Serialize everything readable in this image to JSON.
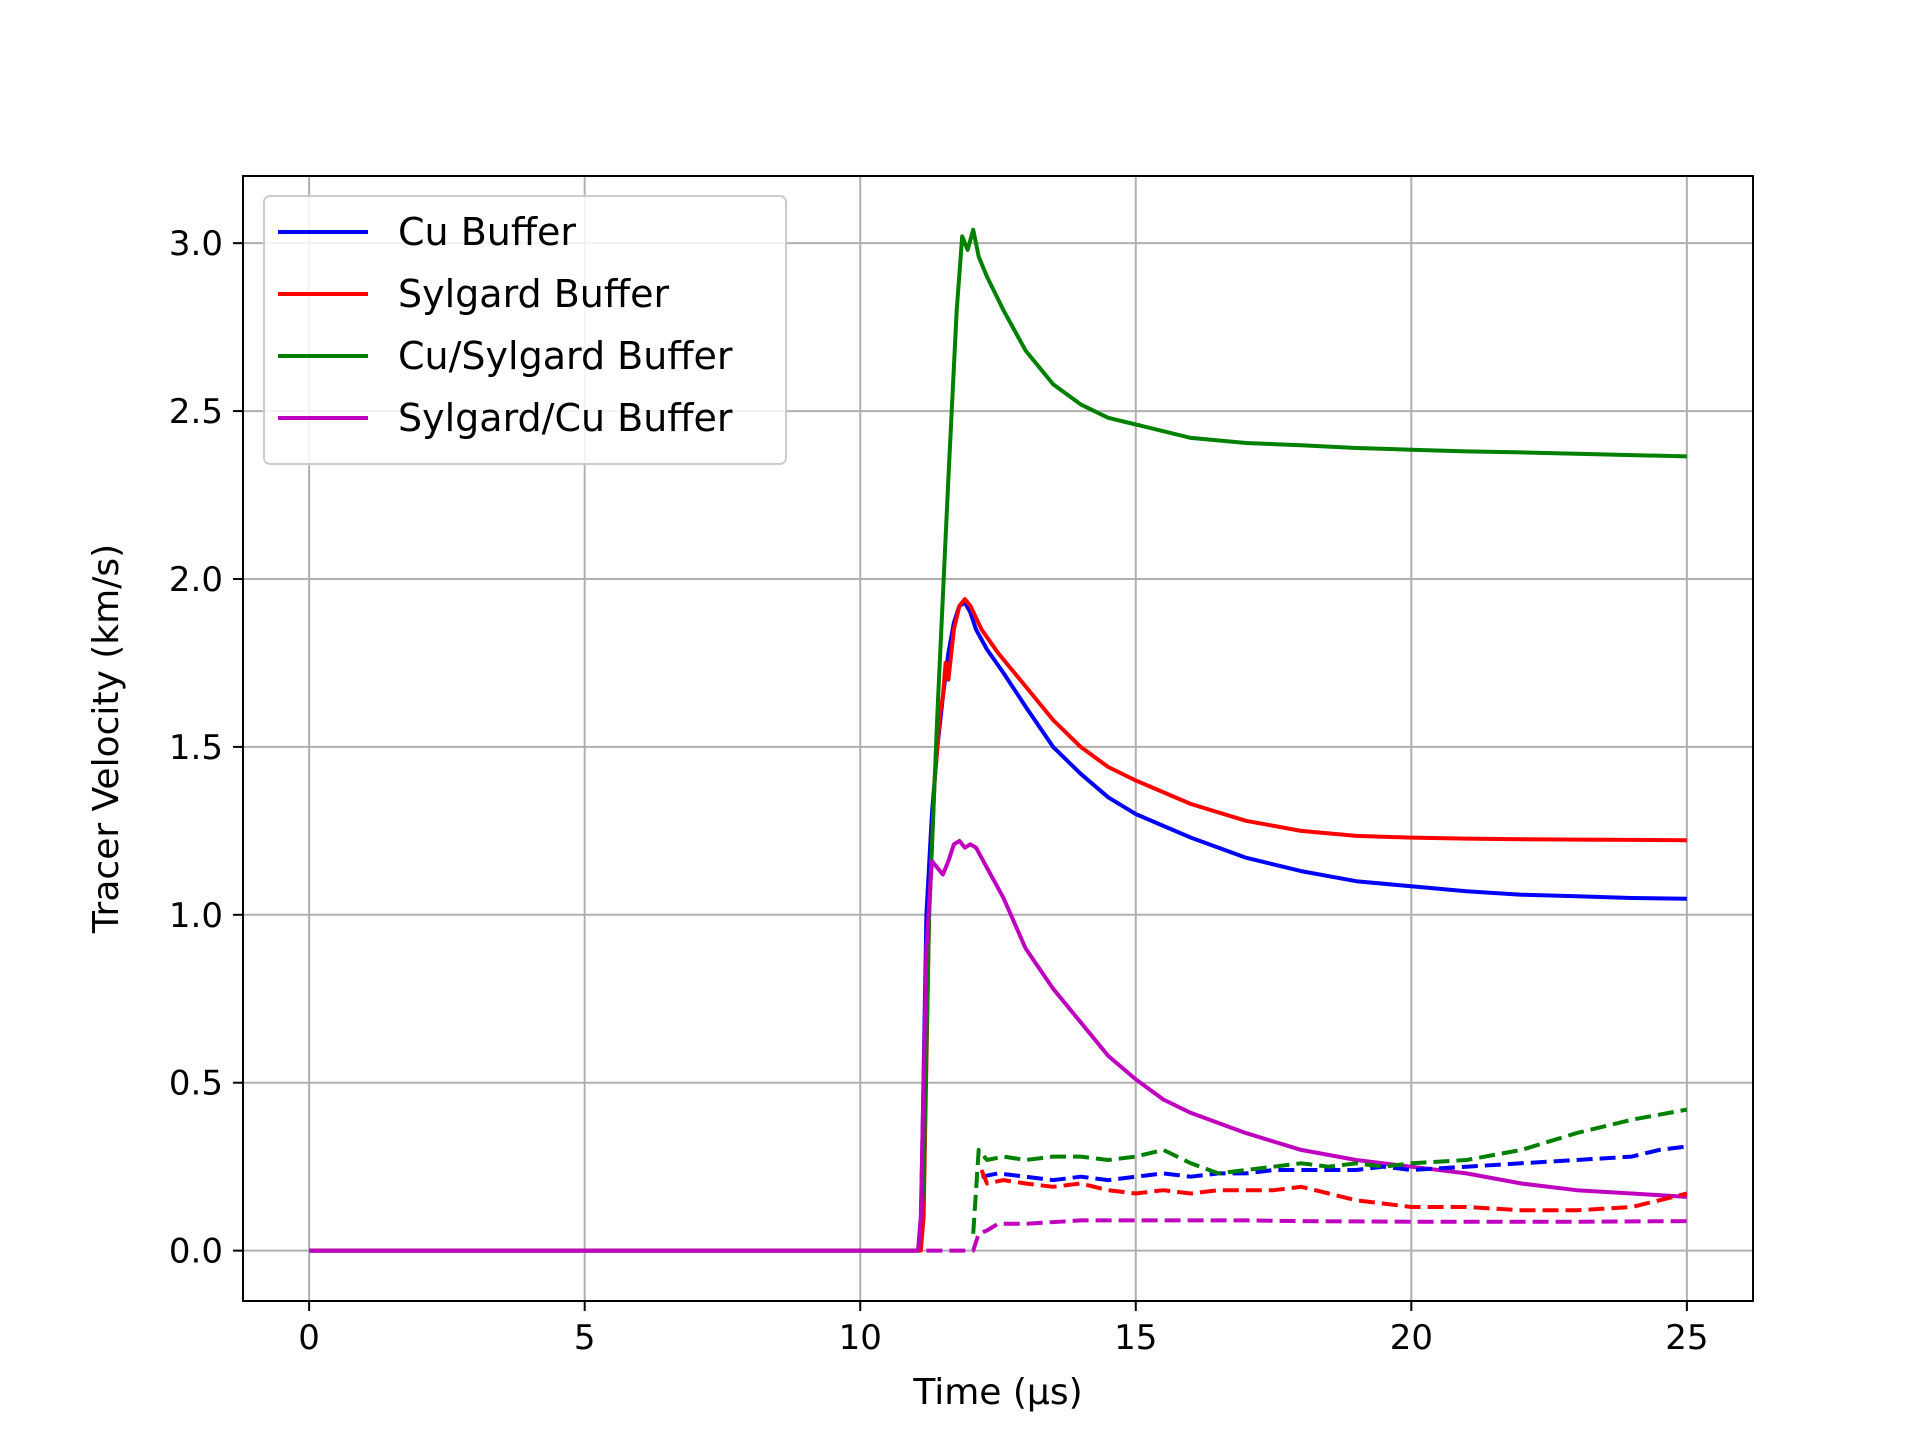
{
  "chart_data": {
    "type": "line",
    "xlabel": "Time (μs)",
    "ylabel": "Tracer Velocity (km/s)",
    "xlim": [
      -1.2,
      26.2
    ],
    "ylim": [
      -0.15,
      3.2
    ],
    "xticks": [
      0,
      5,
      10,
      15,
      20,
      25
    ],
    "xtick_labels": [
      "0",
      "5",
      "10",
      "15",
      "20",
      "25"
    ],
    "yticks": [
      0.0,
      0.5,
      1.0,
      1.5,
      2.0,
      2.5,
      3.0
    ],
    "ytick_labels": [
      "0.0",
      "0.5",
      "1.0",
      "1.5",
      "2.0",
      "2.5",
      "3.0"
    ],
    "grid": true,
    "legend_position": "upper-left",
    "series": [
      {
        "name": "Cu Buffer",
        "color": "#0000ff",
        "style": "solid",
        "points": [
          [
            0,
            0
          ],
          [
            11.05,
            0
          ],
          [
            11.1,
            0.05
          ],
          [
            11.2,
            1.0
          ],
          [
            11.3,
            1.3
          ],
          [
            11.4,
            1.5
          ],
          [
            11.5,
            1.65
          ],
          [
            11.6,
            1.78
          ],
          [
            11.7,
            1.87
          ],
          [
            11.8,
            1.92
          ],
          [
            11.9,
            1.93
          ],
          [
            12.0,
            1.9
          ],
          [
            12.1,
            1.85
          ],
          [
            12.3,
            1.79
          ],
          [
            12.6,
            1.72
          ],
          [
            13.0,
            1.62
          ],
          [
            13.5,
            1.5
          ],
          [
            14.0,
            1.42
          ],
          [
            14.5,
            1.35
          ],
          [
            15.0,
            1.3
          ],
          [
            16.0,
            1.23
          ],
          [
            17.0,
            1.17
          ],
          [
            18.0,
            1.13
          ],
          [
            19.0,
            1.1
          ],
          [
            20.0,
            1.085
          ],
          [
            21.0,
            1.07
          ],
          [
            22.0,
            1.06
          ],
          [
            23.0,
            1.055
          ],
          [
            24.0,
            1.05
          ],
          [
            25.0,
            1.048
          ]
        ]
      },
      {
        "name": "Sylgard Buffer",
        "color": "#ff0000",
        "style": "solid",
        "points": [
          [
            0,
            0
          ],
          [
            11.1,
            0
          ],
          [
            11.15,
            0.1
          ],
          [
            11.25,
            1.0
          ],
          [
            11.35,
            1.4
          ],
          [
            11.45,
            1.6
          ],
          [
            11.5,
            1.65
          ],
          [
            11.55,
            1.75
          ],
          [
            11.6,
            1.7
          ],
          [
            11.7,
            1.85
          ],
          [
            11.8,
            1.92
          ],
          [
            11.9,
            1.94
          ],
          [
            12.0,
            1.92
          ],
          [
            12.2,
            1.85
          ],
          [
            12.5,
            1.78
          ],
          [
            13.0,
            1.68
          ],
          [
            13.5,
            1.58
          ],
          [
            14.0,
            1.5
          ],
          [
            14.5,
            1.44
          ],
          [
            15.0,
            1.4
          ],
          [
            16.0,
            1.33
          ],
          [
            17.0,
            1.28
          ],
          [
            18.0,
            1.25
          ],
          [
            19.0,
            1.235
          ],
          [
            20.0,
            1.23
          ],
          [
            21.0,
            1.227
          ],
          [
            22.0,
            1.225
          ],
          [
            23.0,
            1.224
          ],
          [
            24.0,
            1.223
          ],
          [
            25.0,
            1.222
          ]
        ]
      },
      {
        "name": "Cu/Sylgard Buffer",
        "color": "#008000",
        "style": "solid",
        "points": [
          [
            0,
            0
          ],
          [
            11.05,
            0
          ],
          [
            11.15,
            0.2
          ],
          [
            11.25,
            1.0
          ],
          [
            11.4,
            1.6
          ],
          [
            11.6,
            2.3
          ],
          [
            11.75,
            2.8
          ],
          [
            11.85,
            3.02
          ],
          [
            11.95,
            2.98
          ],
          [
            12.05,
            3.04
          ],
          [
            12.15,
            2.96
          ],
          [
            12.3,
            2.9
          ],
          [
            12.6,
            2.8
          ],
          [
            13.0,
            2.68
          ],
          [
            13.5,
            2.58
          ],
          [
            14.0,
            2.52
          ],
          [
            14.5,
            2.48
          ],
          [
            15.0,
            2.46
          ],
          [
            16.0,
            2.42
          ],
          [
            17.0,
            2.405
          ],
          [
            18.0,
            2.398
          ],
          [
            19.0,
            2.39
          ],
          [
            20.0,
            2.385
          ],
          [
            21.0,
            2.38
          ],
          [
            22.0,
            2.377
          ],
          [
            23.0,
            2.373
          ],
          [
            24.0,
            2.369
          ],
          [
            25.0,
            2.365
          ]
        ]
      },
      {
        "name": "Sylgard/Cu Buffer",
        "color": "#bf00bf",
        "style": "solid",
        "points": [
          [
            0,
            0
          ],
          [
            11.05,
            0
          ],
          [
            11.1,
            0.1
          ],
          [
            11.2,
            0.9
          ],
          [
            11.3,
            1.16
          ],
          [
            11.4,
            1.14
          ],
          [
            11.5,
            1.12
          ],
          [
            11.6,
            1.16
          ],
          [
            11.7,
            1.21
          ],
          [
            11.8,
            1.22
          ],
          [
            11.9,
            1.2
          ],
          [
            12.0,
            1.21
          ],
          [
            12.1,
            1.2
          ],
          [
            12.3,
            1.14
          ],
          [
            12.6,
            1.05
          ],
          [
            13.0,
            0.9
          ],
          [
            13.5,
            0.78
          ],
          [
            14.0,
            0.68
          ],
          [
            14.5,
            0.58
          ],
          [
            15.0,
            0.51
          ],
          [
            15.5,
            0.45
          ],
          [
            16.0,
            0.41
          ],
          [
            17.0,
            0.35
          ],
          [
            18.0,
            0.3
          ],
          [
            19.0,
            0.27
          ],
          [
            20.0,
            0.25
          ],
          [
            21.0,
            0.23
          ],
          [
            22.0,
            0.2
          ],
          [
            23.0,
            0.18
          ],
          [
            24.0,
            0.17
          ],
          [
            25.0,
            0.16
          ]
        ]
      },
      {
        "name": "",
        "color": "#0000ff",
        "style": "dashed",
        "points": [
          [
            12.2,
            0.22
          ],
          [
            12.5,
            0.23
          ],
          [
            13.0,
            0.22
          ],
          [
            13.5,
            0.21
          ],
          [
            14.0,
            0.22
          ],
          [
            14.5,
            0.21
          ],
          [
            15.0,
            0.22
          ],
          [
            15.5,
            0.23
          ],
          [
            16.0,
            0.22
          ],
          [
            16.5,
            0.23
          ],
          [
            17.0,
            0.23
          ],
          [
            17.5,
            0.24
          ],
          [
            18.0,
            0.24
          ],
          [
            18.5,
            0.24
          ],
          [
            19.0,
            0.24
          ],
          [
            19.5,
            0.25
          ],
          [
            20.0,
            0.24
          ],
          [
            21.0,
            0.25
          ],
          [
            22.0,
            0.26
          ],
          [
            23.0,
            0.27
          ],
          [
            24.0,
            0.28
          ],
          [
            24.5,
            0.3
          ],
          [
            25.0,
            0.31
          ]
        ]
      },
      {
        "name": "",
        "color": "#ff0000",
        "style": "dashed",
        "points": [
          [
            12.2,
            0.24
          ],
          [
            12.3,
            0.2
          ],
          [
            12.6,
            0.21
          ],
          [
            13.0,
            0.2
          ],
          [
            13.5,
            0.19
          ],
          [
            14.0,
            0.2
          ],
          [
            14.5,
            0.18
          ],
          [
            15.0,
            0.17
          ],
          [
            15.5,
            0.18
          ],
          [
            16.0,
            0.17
          ],
          [
            16.5,
            0.18
          ],
          [
            17.0,
            0.18
          ],
          [
            17.5,
            0.18
          ],
          [
            18.0,
            0.19
          ],
          [
            18.5,
            0.17
          ],
          [
            19.0,
            0.15
          ],
          [
            19.5,
            0.14
          ],
          [
            20.0,
            0.13
          ],
          [
            21.0,
            0.13
          ],
          [
            22.0,
            0.12
          ],
          [
            23.0,
            0.12
          ],
          [
            24.0,
            0.13
          ],
          [
            24.5,
            0.15
          ],
          [
            25.0,
            0.17
          ]
        ]
      },
      {
        "name": "",
        "color": "#008000",
        "style": "dashed",
        "points": [
          [
            12.05,
            0.05
          ],
          [
            12.15,
            0.3
          ],
          [
            12.3,
            0.27
          ],
          [
            12.6,
            0.28
          ],
          [
            13.0,
            0.27
          ],
          [
            13.5,
            0.28
          ],
          [
            14.0,
            0.28
          ],
          [
            14.5,
            0.27
          ],
          [
            15.0,
            0.28
          ],
          [
            15.5,
            0.3
          ],
          [
            16.0,
            0.26
          ],
          [
            16.5,
            0.23
          ],
          [
            17.0,
            0.24
          ],
          [
            17.5,
            0.25
          ],
          [
            18.0,
            0.26
          ],
          [
            18.5,
            0.25
          ],
          [
            19.0,
            0.26
          ],
          [
            19.5,
            0.25
          ],
          [
            20.0,
            0.26
          ],
          [
            21.0,
            0.27
          ],
          [
            22.0,
            0.3
          ],
          [
            23.0,
            0.35
          ],
          [
            24.0,
            0.39
          ],
          [
            25.0,
            0.42
          ]
        ]
      },
      {
        "name": "",
        "color": "#bf00bf",
        "style": "dashed",
        "points": [
          [
            11.2,
            0
          ],
          [
            12.05,
            0
          ],
          [
            12.15,
            0.05
          ],
          [
            12.3,
            0.06
          ],
          [
            12.5,
            0.08
          ],
          [
            13.0,
            0.08
          ],
          [
            14.0,
            0.09
          ],
          [
            15.0,
            0.09
          ],
          [
            16.0,
            0.09
          ],
          [
            17.0,
            0.09
          ],
          [
            18.0,
            0.088
          ],
          [
            19.0,
            0.087
          ],
          [
            20.0,
            0.086
          ],
          [
            21.0,
            0.086
          ],
          [
            22.0,
            0.086
          ],
          [
            23.0,
            0.086
          ],
          [
            24.0,
            0.087
          ],
          [
            25.0,
            0.088
          ]
        ]
      }
    ]
  }
}
